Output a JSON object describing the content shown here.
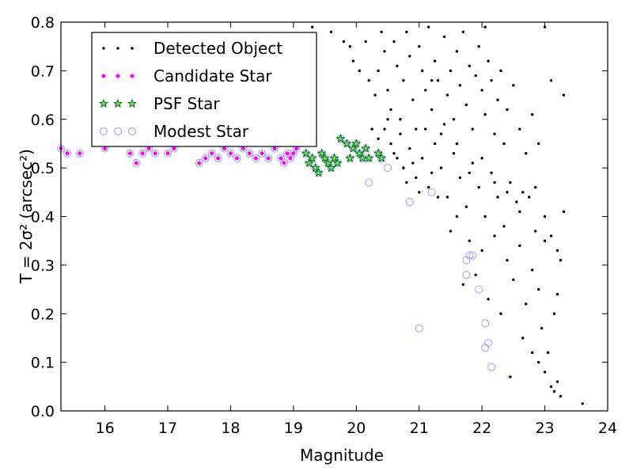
{
  "chart_data": {
    "type": "scatter",
    "xlabel": "Magnitude",
    "ylabel": "T = 2σ² (arcsec²)",
    "xlim": [
      15.3,
      24
    ],
    "ylim": [
      0.0,
      0.8
    ],
    "xticks": [
      16,
      17,
      18,
      19,
      20,
      21,
      22,
      23,
      24
    ],
    "yticks": [
      0.0,
      0.1,
      0.2,
      0.3,
      0.4,
      0.5,
      0.6,
      0.7,
      0.8
    ],
    "grid": false,
    "legend_position": "upper-left",
    "legend": [
      {
        "name": "Detected Object",
        "marker": "dot",
        "color": "#000000"
      },
      {
        "name": "Candidate Star",
        "marker": "circle-small",
        "color": "#ff00ff"
      },
      {
        "name": "PSF Star",
        "marker": "star",
        "color": "#00aa00"
      },
      {
        "name": "Modest Star",
        "marker": "circle-open",
        "color": "#a9a9ff"
      }
    ],
    "series": [
      {
        "name": "Detected Object",
        "points": [
          [
            19.3,
            0.79
          ],
          [
            19.6,
            0.78
          ],
          [
            19.8,
            0.76
          ],
          [
            19.9,
            0.75
          ],
          [
            19.95,
            0.72
          ],
          [
            20.05,
            0.7
          ],
          [
            20.15,
            0.76
          ],
          [
            20.2,
            0.68
          ],
          [
            20.3,
            0.65
          ],
          [
            20.35,
            0.7
          ],
          [
            20.4,
            0.78
          ],
          [
            20.45,
            0.74
          ],
          [
            20.5,
            0.66
          ],
          [
            20.55,
            0.62
          ],
          [
            20.6,
            0.76
          ],
          [
            20.65,
            0.71
          ],
          [
            20.7,
            0.6
          ],
          [
            20.75,
            0.68
          ],
          [
            20.8,
            0.78
          ],
          [
            20.85,
            0.73
          ],
          [
            20.9,
            0.64
          ],
          [
            20.95,
            0.58
          ],
          [
            21.0,
            0.75
          ],
          [
            21.05,
            0.7
          ],
          [
            21.1,
            0.66
          ],
          [
            21.15,
            0.79
          ],
          [
            21.2,
            0.62
          ],
          [
            21.25,
            0.72
          ],
          [
            21.3,
            0.68
          ],
          [
            21.35,
            0.57
          ],
          [
            21.4,
            0.77
          ],
          [
            21.45,
            0.65
          ],
          [
            21.5,
            0.7
          ],
          [
            21.55,
            0.6
          ],
          [
            21.6,
            0.74
          ],
          [
            21.65,
            0.67
          ],
          [
            21.7,
            0.78
          ],
          [
            21.75,
            0.63
          ],
          [
            21.8,
            0.71
          ],
          [
            21.85,
            0.58
          ],
          [
            21.9,
            0.69
          ],
          [
            21.95,
            0.75
          ],
          [
            22.0,
            0.66
          ],
          [
            22.05,
            0.61
          ],
          [
            22.1,
            0.72
          ],
          [
            22.15,
            0.68
          ],
          [
            22.2,
            0.57
          ],
          [
            22.25,
            0.64
          ],
          [
            22.3,
            0.7
          ],
          [
            22.35,
            0.55
          ],
          [
            22.4,
            0.62
          ],
          [
            22.5,
            0.67
          ],
          [
            22.6,
            0.58
          ],
          [
            22.7,
            0.53
          ],
          [
            22.8,
            0.61
          ],
          [
            22.9,
            0.55
          ],
          [
            23.0,
            0.79
          ],
          [
            23.1,
            0.68
          ],
          [
            23.3,
            0.65
          ],
          [
            22.05,
            0.79
          ],
          [
            20.45,
            0.58
          ],
          [
            20.55,
            0.55
          ],
          [
            20.65,
            0.52
          ],
          [
            20.75,
            0.5
          ],
          [
            20.85,
            0.54
          ],
          [
            20.95,
            0.48
          ],
          [
            21.05,
            0.52
          ],
          [
            21.15,
            0.46
          ],
          [
            21.25,
            0.55
          ],
          [
            21.35,
            0.5
          ],
          [
            21.45,
            0.44
          ],
          [
            21.55,
            0.53
          ],
          [
            21.65,
            0.48
          ],
          [
            21.75,
            0.42
          ],
          [
            21.85,
            0.51
          ],
          [
            21.95,
            0.46
          ],
          [
            22.05,
            0.4
          ],
          [
            22.15,
            0.49
          ],
          [
            22.25,
            0.44
          ],
          [
            22.35,
            0.38
          ],
          [
            22.45,
            0.47
          ],
          [
            22.55,
            0.43
          ],
          [
            22.65,
            0.45
          ],
          [
            22.75,
            0.44
          ],
          [
            22.85,
            0.37
          ],
          [
            21.3,
            0.44
          ],
          [
            21.5,
            0.37
          ],
          [
            21.6,
            0.4
          ],
          [
            21.8,
            0.35
          ],
          [
            22.0,
            0.33
          ],
          [
            22.2,
            0.36
          ],
          [
            22.4,
            0.31
          ],
          [
            22.6,
            0.34
          ],
          [
            22.8,
            0.29
          ],
          [
            23.0,
            0.35
          ],
          [
            23.1,
            0.36
          ],
          [
            23.2,
            0.33
          ],
          [
            23.3,
            0.41
          ],
          [
            23.25,
            0.31
          ],
          [
            22.9,
            0.25
          ],
          [
            22.7,
            0.22
          ],
          [
            22.5,
            0.27
          ],
          [
            22.3,
            0.2
          ],
          [
            22.1,
            0.23
          ],
          [
            21.9,
            0.28
          ],
          [
            21.7,
            0.26
          ],
          [
            22.95,
            0.17
          ],
          [
            23.05,
            0.12
          ],
          [
            23.15,
            0.2
          ],
          [
            23.2,
            0.24
          ],
          [
            23.1,
            0.05
          ],
          [
            23.15,
            0.04
          ],
          [
            23.25,
            0.03
          ],
          [
            22.9,
            0.1
          ],
          [
            22.8,
            0.12
          ],
          [
            23.0,
            0.08
          ],
          [
            23.2,
            0.06
          ],
          [
            22.65,
            0.15
          ],
          [
            22.45,
            0.07
          ],
          [
            23.6,
            0.015
          ],
          [
            21.2,
            0.68
          ],
          [
            21.4,
            0.59
          ],
          [
            21.6,
            0.55
          ],
          [
            21.8,
            0.49
          ],
          [
            22.0,
            0.52
          ],
          [
            22.2,
            0.47
          ],
          [
            22.4,
            0.45
          ],
          [
            22.6,
            0.41
          ],
          [
            22.85,
            0.46
          ],
          [
            23.0,
            0.4
          ],
          [
            20.25,
            0.58
          ],
          [
            20.35,
            0.56
          ],
          [
            20.5,
            0.6
          ],
          [
            20.6,
            0.53
          ],
          [
            20.7,
            0.57
          ],
          [
            20.8,
            0.47
          ],
          [
            20.9,
            0.51
          ],
          [
            21.0,
            0.45
          ],
          [
            21.1,
            0.58
          ],
          [
            21.2,
            0.49
          ]
        ]
      },
      {
        "name": "Candidate Star",
        "points": [
          [
            15.3,
            0.54
          ],
          [
            15.4,
            0.53
          ],
          [
            15.6,
            0.53
          ],
          [
            16.0,
            0.54
          ],
          [
            16.4,
            0.53
          ],
          [
            16.5,
            0.51
          ],
          [
            16.6,
            0.53
          ],
          [
            16.7,
            0.54
          ],
          [
            16.8,
            0.53
          ],
          [
            17.0,
            0.53
          ],
          [
            17.1,
            0.54
          ],
          [
            17.5,
            0.51
          ],
          [
            17.6,
            0.52
          ],
          [
            17.7,
            0.53
          ],
          [
            17.8,
            0.52
          ],
          [
            17.9,
            0.54
          ],
          [
            18.0,
            0.53
          ],
          [
            18.1,
            0.52
          ],
          [
            18.2,
            0.54
          ],
          [
            18.3,
            0.53
          ],
          [
            18.4,
            0.52
          ],
          [
            18.5,
            0.53
          ],
          [
            18.6,
            0.52
          ],
          [
            18.7,
            0.54
          ],
          [
            18.8,
            0.52
          ],
          [
            18.85,
            0.51
          ],
          [
            18.9,
            0.53
          ],
          [
            18.95,
            0.52
          ],
          [
            19.0,
            0.53
          ],
          [
            19.05,
            0.54
          ]
        ]
      },
      {
        "name": "PSF Star",
        "points": [
          [
            19.2,
            0.53
          ],
          [
            19.25,
            0.51
          ],
          [
            19.3,
            0.52
          ],
          [
            19.35,
            0.5
          ],
          [
            19.4,
            0.49
          ],
          [
            19.45,
            0.53
          ],
          [
            19.5,
            0.52
          ],
          [
            19.55,
            0.51
          ],
          [
            19.6,
            0.5
          ],
          [
            19.65,
            0.52
          ],
          [
            19.7,
            0.51
          ],
          [
            19.75,
            0.56
          ],
          [
            19.85,
            0.55
          ],
          [
            19.9,
            0.52
          ],
          [
            19.95,
            0.54
          ],
          [
            20.0,
            0.55
          ],
          [
            20.05,
            0.53
          ],
          [
            20.1,
            0.52
          ],
          [
            20.15,
            0.54
          ],
          [
            20.2,
            0.52
          ],
          [
            20.35,
            0.53
          ],
          [
            20.4,
            0.52
          ]
        ]
      },
      {
        "name": "Modest Star",
        "points": [
          [
            15.3,
            0.54
          ],
          [
            15.4,
            0.53
          ],
          [
            15.6,
            0.53
          ],
          [
            16.0,
            0.54
          ],
          [
            16.4,
            0.53
          ],
          [
            16.5,
            0.51
          ],
          [
            16.6,
            0.53
          ],
          [
            16.7,
            0.54
          ],
          [
            16.8,
            0.53
          ],
          [
            17.0,
            0.53
          ],
          [
            17.1,
            0.54
          ],
          [
            17.5,
            0.51
          ],
          [
            17.6,
            0.52
          ],
          [
            17.7,
            0.53
          ],
          [
            17.8,
            0.52
          ],
          [
            17.9,
            0.54
          ],
          [
            18.0,
            0.53
          ],
          [
            18.1,
            0.52
          ],
          [
            18.2,
            0.54
          ],
          [
            18.3,
            0.53
          ],
          [
            18.4,
            0.52
          ],
          [
            18.5,
            0.53
          ],
          [
            18.6,
            0.52
          ],
          [
            18.7,
            0.54
          ],
          [
            18.8,
            0.52
          ],
          [
            18.85,
            0.51
          ],
          [
            18.9,
            0.53
          ],
          [
            18.95,
            0.52
          ],
          [
            19.0,
            0.53
          ],
          [
            19.05,
            0.54
          ],
          [
            19.2,
            0.53
          ],
          [
            19.25,
            0.51
          ],
          [
            19.3,
            0.52
          ],
          [
            19.35,
            0.5
          ],
          [
            19.4,
            0.49
          ],
          [
            19.45,
            0.53
          ],
          [
            19.5,
            0.52
          ],
          [
            19.55,
            0.51
          ],
          [
            19.6,
            0.5
          ],
          [
            19.65,
            0.52
          ],
          [
            19.7,
            0.51
          ],
          [
            19.75,
            0.56
          ],
          [
            19.85,
            0.55
          ],
          [
            19.9,
            0.52
          ],
          [
            19.95,
            0.54
          ],
          [
            20.0,
            0.55
          ],
          [
            20.05,
            0.53
          ],
          [
            20.1,
            0.52
          ],
          [
            20.15,
            0.54
          ],
          [
            20.2,
            0.52
          ],
          [
            20.35,
            0.53
          ],
          [
            20.4,
            0.52
          ],
          [
            20.5,
            0.5
          ],
          [
            20.2,
            0.47
          ],
          [
            20.85,
            0.43
          ],
          [
            21.2,
            0.45
          ],
          [
            21.0,
            0.17
          ],
          [
            21.75,
            0.31
          ],
          [
            21.8,
            0.32
          ],
          [
            21.85,
            0.32
          ],
          [
            21.75,
            0.28
          ],
          [
            21.95,
            0.25
          ],
          [
            22.05,
            0.18
          ],
          [
            22.1,
            0.14
          ],
          [
            22.05,
            0.13
          ],
          [
            22.15,
            0.09
          ]
        ]
      }
    ]
  }
}
